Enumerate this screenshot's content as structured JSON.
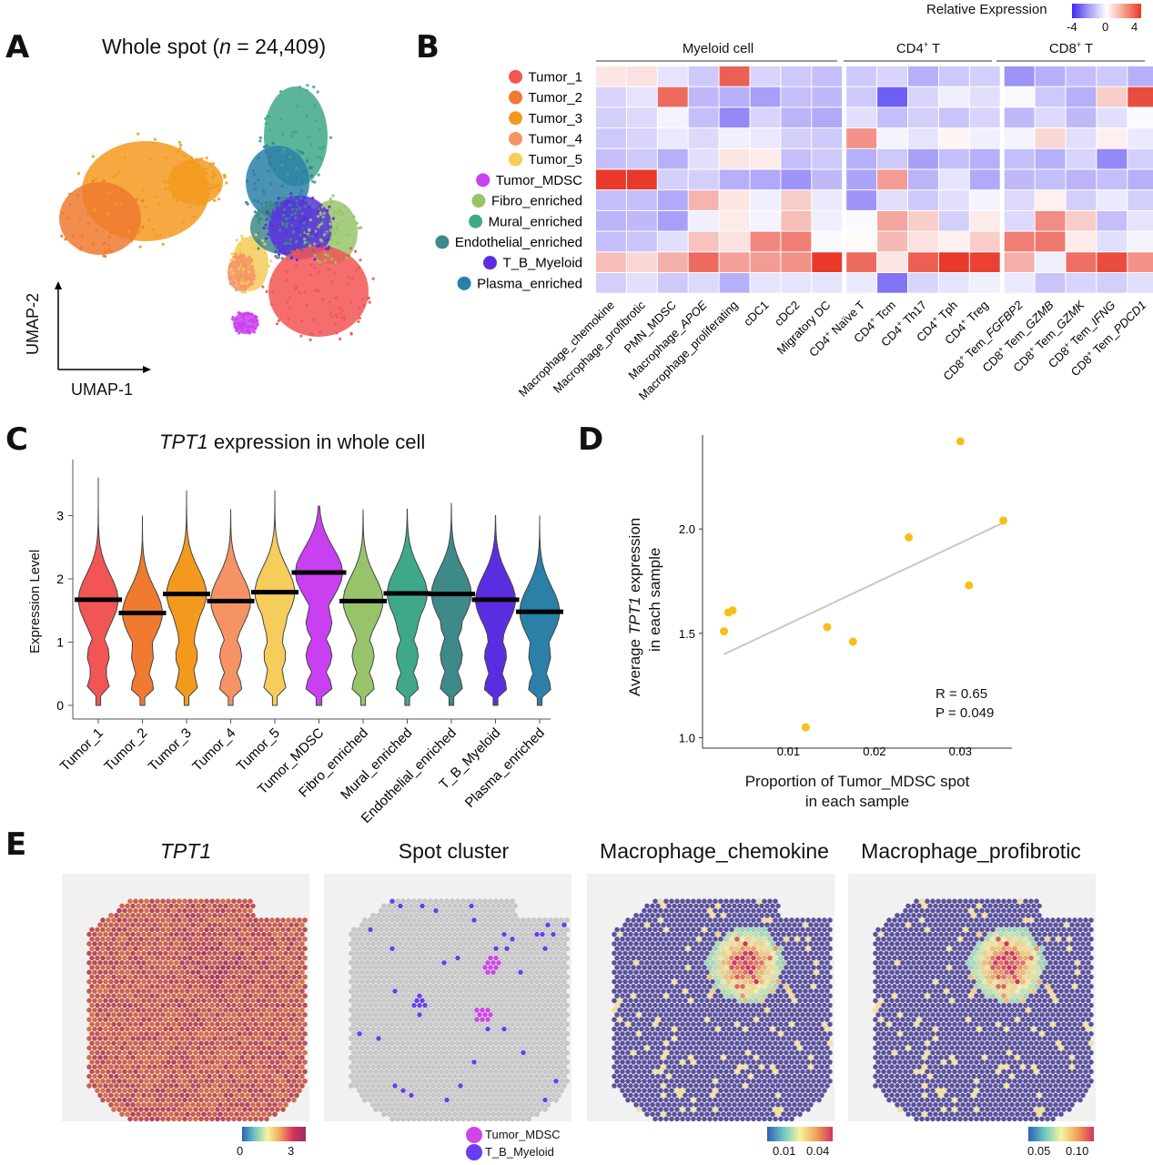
{
  "panels": {
    "a": "A",
    "b": "B",
    "c": "C",
    "d": "D",
    "e": "E"
  },
  "panel_a": {
    "title_prefix": "Whole spot (",
    "title_n": "n",
    "title_suffix": " = 24,409)",
    "xlabel": "UMAP-1",
    "ylabel": "UMAP-2"
  },
  "clusters": [
    {
      "name": "Tumor_1",
      "color": "#f25555"
    },
    {
      "name": "Tumor_2",
      "color": "#ef7a30"
    },
    {
      "name": "Tumor_3",
      "color": "#f39a1e"
    },
    {
      "name": "Tumor_4",
      "color": "#f59364"
    },
    {
      "name": "Tumor_5",
      "color": "#f5cd5a"
    },
    {
      "name": "Tumor_MDSC",
      "color": "#c940f0"
    },
    {
      "name": "Fibro_enriched",
      "color": "#97c46a"
    },
    {
      "name": "Mural_enriched",
      "color": "#40a88a"
    },
    {
      "name": "Endothelial_enriched",
      "color": "#3e8a88"
    },
    {
      "name": "T_B_Myeloid",
      "color": "#5a2ee0"
    },
    {
      "name": "Plasma_enriched",
      "color": "#2b80a8"
    }
  ],
  "panel_b": {
    "colorbar_title": "Relative Expression",
    "colorbar_ticks": [
      "-4",
      "0",
      "4"
    ],
    "groups": [
      {
        "label": "Myeloid cell",
        "superscript": "",
        "tail": ""
      },
      {
        "label": "CD4",
        "superscript": "+",
        "tail": " T"
      },
      {
        "label": "CD8",
        "superscript": "+",
        "tail": " T"
      }
    ],
    "columns": [
      "Macrophage_chemokine",
      "Macrophage_profibrotic",
      "PMN_MDSC",
      "Macrophage_APOE",
      "Macrophage_proliferating",
      "cDC1",
      "cDC2",
      "Migratory DC",
      "CD4+ Naïve T",
      "CD4+ Tcm",
      "CD4+ Th17",
      "CD4+ Tph",
      "CD4+ Treg",
      "CD8+ Tem_FGFBP2",
      "CD8+ Tem_GZMB",
      "CD8+ Tem_GZMK",
      "CD8+ Tem_IFNG",
      "CD8+ Tem_PDCD1"
    ],
    "heatmap": [
      [
        0.5,
        0.6,
        -0.5,
        -1.0,
        3.2,
        -0.8,
        -1.0,
        -1.2,
        -1.0,
        -0.8,
        -1.5,
        -1.0,
        -0.9,
        -2.0,
        -1.5,
        -1.2,
        -1.0,
        -1.5
      ],
      [
        -0.8,
        -0.5,
        3.0,
        -1.3,
        -1.5,
        -1.8,
        -1.2,
        -1.3,
        -1.0,
        -3.0,
        -0.8,
        -0.3,
        -0.6,
        -0.1,
        -1.0,
        -1.5,
        1.0,
        3.6
      ],
      [
        -0.9,
        -0.7,
        -0.2,
        -1.2,
        -2.2,
        -0.8,
        -1.4,
        -1.6,
        -0.6,
        -1.2,
        -0.9,
        -1.1,
        -0.8,
        -1.3,
        -0.7,
        -1.3,
        -0.6,
        -0.1
      ],
      [
        -1.0,
        -0.8,
        -0.4,
        -0.7,
        -0.3,
        -0.4,
        -0.9,
        -1.0,
        2.2,
        -0.2,
        -0.5,
        0.2,
        -0.3,
        -0.2,
        0.8,
        -0.6,
        0.3,
        -0.4
      ],
      [
        -1.2,
        -1.0,
        -1.5,
        -0.6,
        0.5,
        0.4,
        -1.2,
        -1.0,
        -1.5,
        -1.0,
        -1.8,
        -1.2,
        -1.5,
        -1.2,
        -1.5,
        -0.8,
        -2.2,
        -0.9
      ],
      [
        4.0,
        4.0,
        -0.9,
        -0.9,
        -1.5,
        -1.6,
        -2.0,
        -1.3,
        -1.7,
        2.0,
        -1.4,
        -0.5,
        -1.6,
        -1.3,
        -1.2,
        -1.4,
        -1.2,
        -1.5
      ],
      [
        -1.2,
        -1.2,
        -1.6,
        1.5,
        0.5,
        -0.3,
        1.0,
        -0.4,
        -2.0,
        -0.6,
        -1.0,
        -0.6,
        -0.2,
        -0.7,
        0.3,
        -0.9,
        -0.4,
        -0.9
      ],
      [
        -1.4,
        -1.3,
        -1.8,
        -0.3,
        0.4,
        -0.2,
        1.3,
        -0.3,
        -0.1,
        1.8,
        1.0,
        -0.9,
        0.4,
        -0.7,
        2.3,
        1.0,
        -1.2,
        -0.5
      ],
      [
        -1.2,
        -1.1,
        -0.6,
        1.2,
        0.6,
        2.4,
        2.6,
        -0.1,
        0.1,
        1.4,
        0.6,
        0.3,
        1.0,
        2.6,
        2.7,
        0.4,
        -0.6,
        -0.2
      ],
      [
        1.3,
        0.8,
        1.6,
        3.0,
        1.9,
        2.0,
        2.2,
        4.0,
        3.0,
        0.5,
        3.2,
        4.0,
        3.8,
        1.6,
        -0.3,
        2.9,
        3.6,
        2.2
      ],
      [
        -0.9,
        -0.6,
        -1.0,
        -0.7,
        -1.5,
        -0.5,
        -0.5,
        -0.5,
        -0.4,
        -2.6,
        -0.8,
        -0.5,
        -0.3,
        -0.4,
        -1.1,
        -0.8,
        -0.9,
        -0.6
      ]
    ]
  },
  "chart_data": [
    {
      "type": "violin",
      "title_italic": "TPT1",
      "title_rest": " expression in whole cell",
      "ylabel": "Expression Level",
      "yticks": [
        "0",
        "1",
        "2",
        "3"
      ],
      "ylim": [
        0,
        3.6
      ],
      "categories": [
        "Tumor_1",
        "Tumor_2",
        "Tumor_3",
        "Tumor_4",
        "Tumor_5",
        "Tumor_MDSC",
        "Fibro_enriched",
        "Mural_enriched",
        "Endothelial_enriched",
        "T_B_Myeloid",
        "Plasma_enriched"
      ],
      "medians": [
        1.67,
        1.46,
        1.76,
        1.65,
        1.79,
        2.1,
        1.65,
        1.77,
        1.76,
        1.67,
        1.48
      ],
      "max": [
        3.6,
        3.0,
        3.4,
        3.1,
        3.4,
        3.15,
        3.1,
        3.1,
        3.2,
        3.0,
        3.0
      ]
    },
    {
      "type": "scatter",
      "xlabel_line1": "Proportion of Tumor_MDSC spot",
      "xlabel_line2": "in each sample",
      "ylabel_pre": "Average ",
      "ylabel_italic": "TPT1",
      "ylabel_post": " expression",
      "ylabel_line2": "in each sample",
      "xticks": [
        "0.01",
        "0.02",
        "0.03"
      ],
      "yticks": [
        "1.0",
        "1.5",
        "2.0"
      ],
      "xlim": [
        0.0,
        0.036
      ],
      "ylim": [
        0.95,
        2.45
      ],
      "x": [
        0.0025,
        0.003,
        0.0035,
        0.012,
        0.0145,
        0.0175,
        0.024,
        0.03,
        0.031,
        0.035
      ],
      "y": [
        1.51,
        1.6,
        1.61,
        1.05,
        1.53,
        1.46,
        1.96,
        2.42,
        1.73,
        2.04
      ],
      "trend": {
        "x": [
          0.0025,
          0.035
        ],
        "y": [
          1.4,
          2.03
        ]
      },
      "stats_r": "R = 0.65",
      "stats_p": "P = 0.049"
    }
  ],
  "panel_e": {
    "titles": [
      {
        "text": "TPT1",
        "italic": true
      },
      {
        "text": "Spot cluster",
        "italic": false
      },
      {
        "text": "Macrophage_chemokine",
        "italic": false
      },
      {
        "text": "Macrophage_profibrotic",
        "italic": false
      }
    ],
    "cb1_ticks": [
      "0",
      "3"
    ],
    "cb3_ticks": [
      "0.01",
      "0.04"
    ],
    "cb4_ticks": [
      "0.05",
      "0.10"
    ],
    "legend": [
      {
        "name": "Tumor_MDSC",
        "color": "#cf45e8"
      },
      {
        "name": "T_B_Myeloid",
        "color": "#6a3cf0"
      }
    ]
  }
}
